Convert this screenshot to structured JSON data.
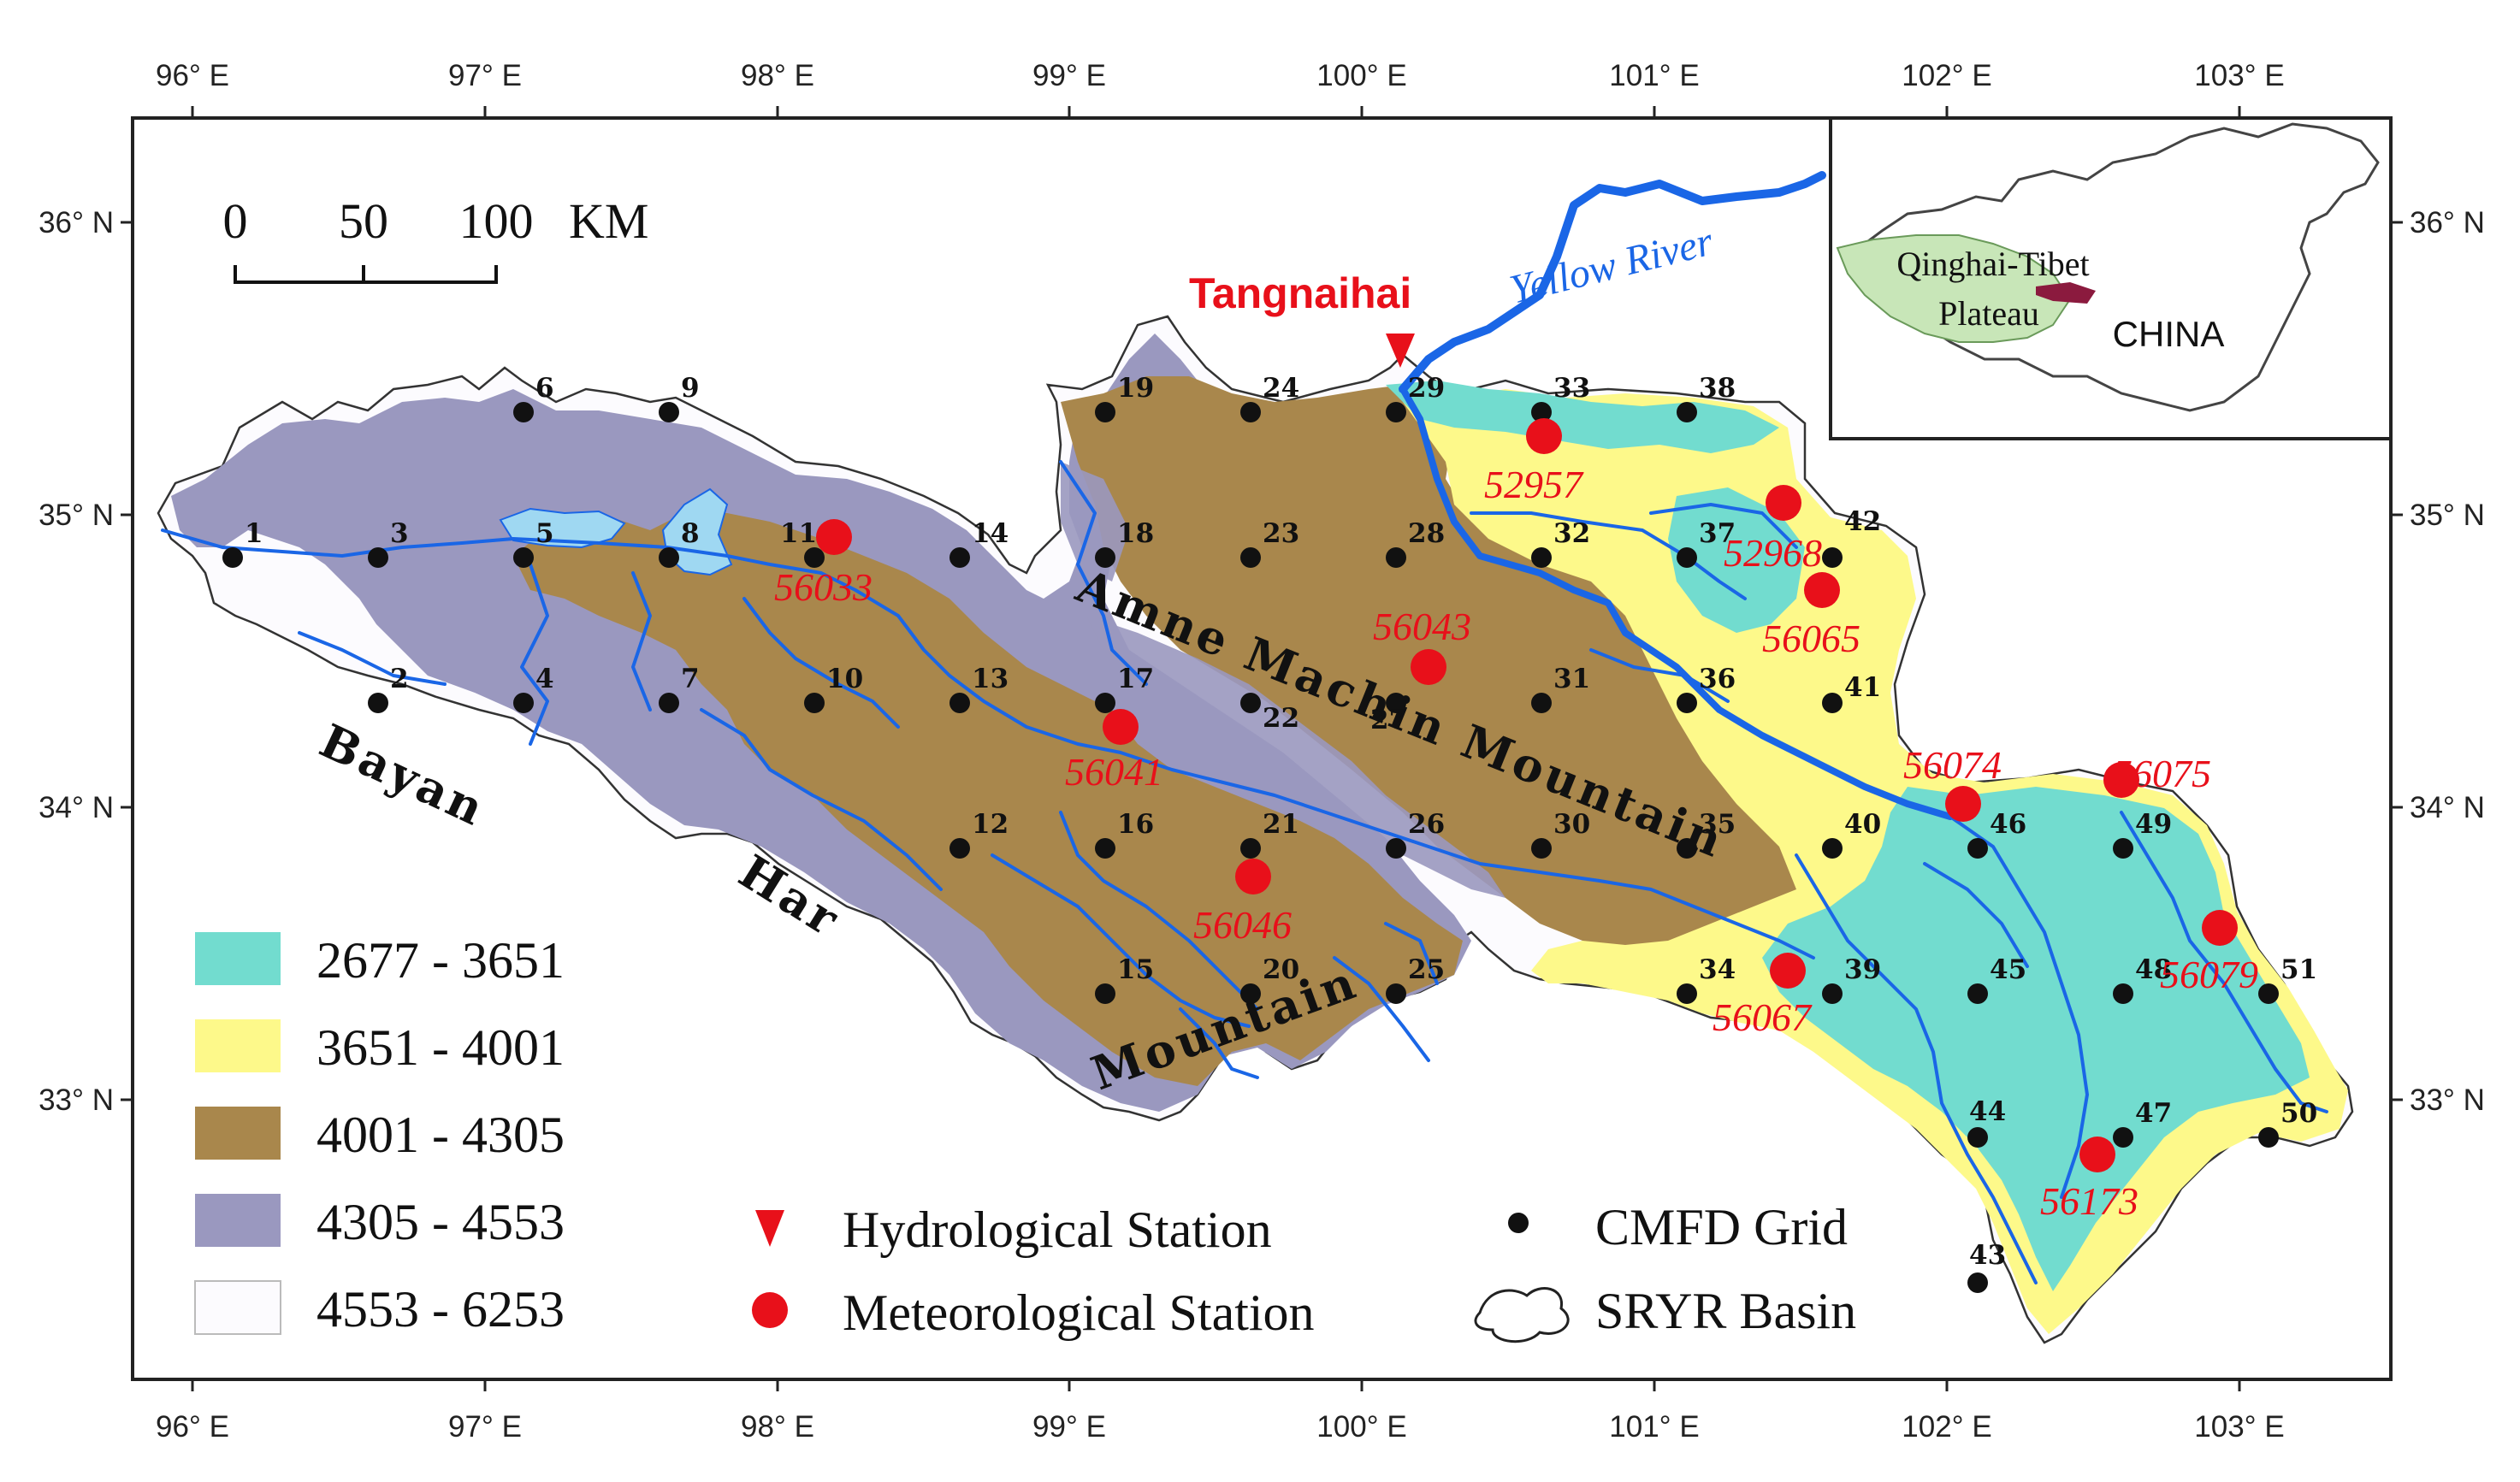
{
  "axes": {
    "lon_labels": [
      "96° E",
      "97° E",
      "98° E",
      "99° E",
      "100° E",
      "101° E",
      "102° E",
      "103° E"
    ],
    "lat_labels": [
      "36° N",
      "35° N",
      "34° N",
      "33° N"
    ]
  },
  "scale_bar": {
    "ticks": [
      "0",
      "50",
      "100"
    ],
    "unit": "KM"
  },
  "hydro_station": {
    "name": "Tangnaihai"
  },
  "river": {
    "name": "Yellow River"
  },
  "mountains": {
    "bayan_har": [
      "Bayan",
      "Har",
      "Mountain"
    ],
    "amne_machin": "Amne Machin Mountain"
  },
  "inset": {
    "region": "Qinghai-Tibet Plateau",
    "region_line1": "Qinghai-Tibet",
    "region_line2": "Plateau",
    "country": "CHINA"
  },
  "elevation_legend": [
    {
      "range": "2677 - 3651",
      "color": "#72dccf"
    },
    {
      "range": "3651 - 4001",
      "color": "#fdf98a"
    },
    {
      "range": "4001 - 4305",
      "color": "#a9874c"
    },
    {
      "range": "4305 - 4553",
      "color": "#9a98bf"
    },
    {
      "range": "4553 - 6253",
      "color": "#fcfbfe"
    }
  ],
  "symbol_legend": {
    "hydro": "Hydrological Station",
    "met": "Meteorological Station",
    "grid": "CMFD Grid",
    "basin": "SRYR Basin"
  },
  "grid_labels": [
    "1",
    "2",
    "3",
    "4",
    "5",
    "6",
    "7",
    "8",
    "9",
    "10",
    "11",
    "12",
    "13",
    "14",
    "15",
    "16",
    "17",
    "18",
    "19",
    "20",
    "21",
    "22",
    "23",
    "24",
    "25",
    "26",
    "27",
    "28",
    "29",
    "30",
    "31",
    "32",
    "33",
    "34",
    "35",
    "36",
    "37",
    "38",
    "39",
    "40",
    "41",
    "42",
    "43",
    "44",
    "45",
    "46",
    "47",
    "48",
    "49",
    "50",
    "51"
  ],
  "met_stations": [
    "56033",
    "56041",
    "56046",
    "56043",
    "52957",
    "52968",
    "56065",
    "56074",
    "56075",
    "56079",
    "56067",
    "56173"
  ],
  "colors": {
    "met": "#e8101a",
    "river": "#1a66e6",
    "lake": "#9fd8f2"
  }
}
